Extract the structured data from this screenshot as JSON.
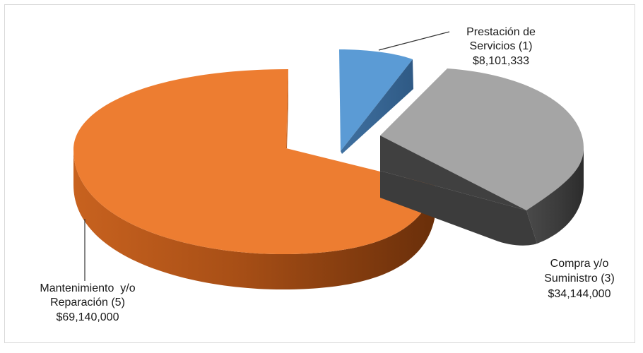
{
  "chart_data": {
    "type": "pie",
    "style": "3d-exploded",
    "slices": [
      {
        "label_lines": [
          "Prestación de",
          "Servicios (1)",
          "$8,101,333"
        ],
        "category": "Prestación de Servicios",
        "count": 1,
        "value": 8101333,
        "value_label": "$8,101,333",
        "color": "#5b9bd5"
      },
      {
        "label_lines": [
          "Compra y/o",
          "Suministro (3)",
          "$34,144,000"
        ],
        "category": "Compra y/o Suministro",
        "count": 3,
        "value": 34144000,
        "value_label": "$34,144,000",
        "color": "#a5a5a5"
      },
      {
        "label_lines": [
          "Mantenimiento  y/o",
          "Reparación (5)",
          "$69,140,000"
        ],
        "category": "Mantenimiento y/o Reparación",
        "count": 5,
        "value": 69140000,
        "value_label": "$69,140,000",
        "color": "#ed7d31"
      }
    ],
    "legend": "none"
  }
}
